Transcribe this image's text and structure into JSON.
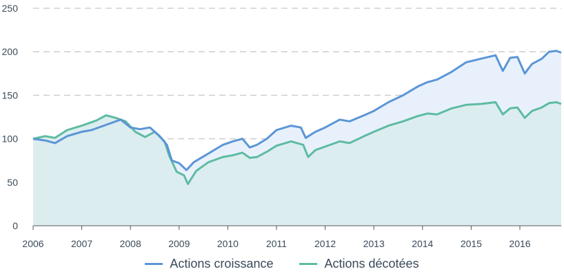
{
  "colors": {
    "growth": "#5b95d6",
    "value": "#5dbba1",
    "growth_fill": "#e8f1fb",
    "value_fill": "#dcedf0",
    "grid": "#c8c8c8",
    "axis": "#555555"
  },
  "chart_data": {
    "type": "area",
    "title": "",
    "xlabel": "",
    "ylabel": "",
    "x_ticks": [
      "2006",
      "2007",
      "2008",
      "2009",
      "2010",
      "2011",
      "2012",
      "2013",
      "2014",
      "2015",
      "2016"
    ],
    "y_ticks": [
      0,
      50,
      100,
      150,
      200,
      250
    ],
    "xlim": [
      2006.0,
      2016.85
    ],
    "ylim": [
      0,
      250
    ],
    "grid": "horizontal dashed",
    "legend_position": "bottom",
    "series": [
      {
        "name": "Actions croissance",
        "points": [
          [
            2006.0,
            100
          ],
          [
            2006.25,
            98
          ],
          [
            2006.45,
            95
          ],
          [
            2006.7,
            103
          ],
          [
            2007.0,
            108
          ],
          [
            2007.2,
            110
          ],
          [
            2007.5,
            116
          ],
          [
            2007.8,
            122
          ],
          [
            2008.0,
            113
          ],
          [
            2008.2,
            111
          ],
          [
            2008.4,
            113
          ],
          [
            2008.6,
            103
          ],
          [
            2008.75,
            93
          ],
          [
            2008.85,
            75
          ],
          [
            2009.0,
            72
          ],
          [
            2009.15,
            64
          ],
          [
            2009.3,
            73
          ],
          [
            2009.6,
            83
          ],
          [
            2009.9,
            93
          ],
          [
            2010.1,
            97
          ],
          [
            2010.3,
            100
          ],
          [
            2010.45,
            90
          ],
          [
            2010.6,
            93
          ],
          [
            2010.8,
            100
          ],
          [
            2011.0,
            110
          ],
          [
            2011.3,
            115
          ],
          [
            2011.5,
            113
          ],
          [
            2011.6,
            101
          ],
          [
            2011.8,
            108
          ],
          [
            2012.0,
            113
          ],
          [
            2012.3,
            122
          ],
          [
            2012.5,
            120
          ],
          [
            2012.8,
            127
          ],
          [
            2013.0,
            132
          ],
          [
            2013.3,
            142
          ],
          [
            2013.6,
            150
          ],
          [
            2013.9,
            160
          ],
          [
            2014.1,
            165
          ],
          [
            2014.3,
            168
          ],
          [
            2014.6,
            177
          ],
          [
            2014.9,
            188
          ],
          [
            2015.2,
            192
          ],
          [
            2015.5,
            196
          ],
          [
            2015.65,
            178
          ],
          [
            2015.8,
            193
          ],
          [
            2015.95,
            194
          ],
          [
            2016.1,
            175
          ],
          [
            2016.25,
            186
          ],
          [
            2016.45,
            192
          ],
          [
            2016.6,
            200
          ],
          [
            2016.75,
            201
          ],
          [
            2016.85,
            199
          ]
        ]
      },
      {
        "name": "Actions décotées",
        "points": [
          [
            2006.0,
            100
          ],
          [
            2006.25,
            103
          ],
          [
            2006.45,
            101
          ],
          [
            2006.7,
            110
          ],
          [
            2007.0,
            115
          ],
          [
            2007.3,
            121
          ],
          [
            2007.5,
            127
          ],
          [
            2007.7,
            124
          ],
          [
            2007.9,
            120
          ],
          [
            2008.1,
            108
          ],
          [
            2008.3,
            102
          ],
          [
            2008.5,
            108
          ],
          [
            2008.7,
            97
          ],
          [
            2008.8,
            80
          ],
          [
            2008.95,
            62
          ],
          [
            2009.1,
            58
          ],
          [
            2009.18,
            48
          ],
          [
            2009.35,
            63
          ],
          [
            2009.6,
            73
          ],
          [
            2009.9,
            79
          ],
          [
            2010.1,
            81
          ],
          [
            2010.3,
            84
          ],
          [
            2010.45,
            78
          ],
          [
            2010.6,
            79
          ],
          [
            2010.8,
            85
          ],
          [
            2011.0,
            92
          ],
          [
            2011.3,
            97
          ],
          [
            2011.55,
            93
          ],
          [
            2011.65,
            79
          ],
          [
            2011.8,
            87
          ],
          [
            2012.0,
            91
          ],
          [
            2012.3,
            97
          ],
          [
            2012.5,
            95
          ],
          [
            2012.8,
            103
          ],
          [
            2013.0,
            108
          ],
          [
            2013.3,
            115
          ],
          [
            2013.6,
            120
          ],
          [
            2013.9,
            126
          ],
          [
            2014.1,
            129
          ],
          [
            2014.3,
            128
          ],
          [
            2014.6,
            135
          ],
          [
            2014.9,
            139
          ],
          [
            2015.2,
            140
          ],
          [
            2015.5,
            142
          ],
          [
            2015.65,
            128
          ],
          [
            2015.8,
            135
          ],
          [
            2015.95,
            136
          ],
          [
            2016.1,
            124
          ],
          [
            2016.25,
            132
          ],
          [
            2016.45,
            136
          ],
          [
            2016.6,
            141
          ],
          [
            2016.75,
            142
          ],
          [
            2016.85,
            140
          ]
        ]
      }
    ]
  }
}
